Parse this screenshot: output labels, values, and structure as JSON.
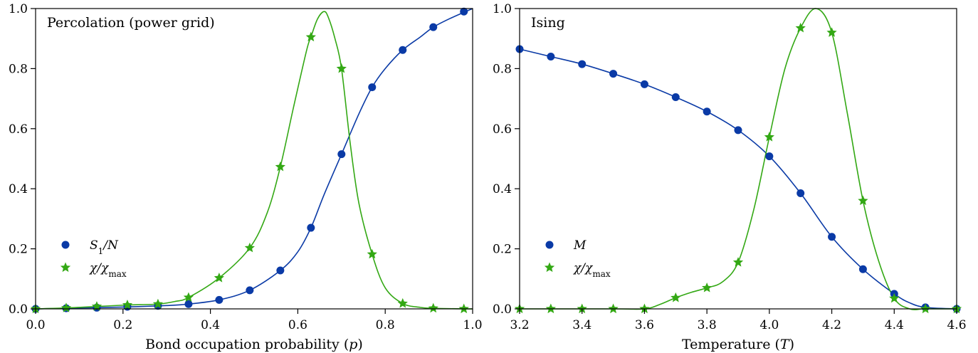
{
  "colors": {
    "blue": "#0a3aa6",
    "green": "#33a814"
  },
  "chart_data": [
    {
      "type": "line",
      "title": "Percolation (power grid)",
      "xlabel": "Bond occupation probability (p)",
      "ylabel": "",
      "xlim": [
        0.0,
        1.0
      ],
      "ylim": [
        0.0,
        1.0
      ],
      "xticks": [
        0.0,
        0.2,
        0.4,
        0.6,
        0.8,
        1.0
      ],
      "xtick_labels": [
        "0.0",
        "0.2",
        "0.4",
        "0.6",
        "0.8",
        "1.0"
      ],
      "yticks": [
        0.0,
        0.2,
        0.4,
        0.6,
        0.8,
        1.0
      ],
      "ytick_labels": [
        "0.0",
        "0.2",
        "0.4",
        "0.6",
        "0.8",
        "1.0"
      ],
      "legend_position": "lower-left",
      "series": [
        {
          "name": "S1/N",
          "marker": "circle",
          "color": "blue",
          "x": [
            0.0,
            0.07,
            0.14,
            0.21,
            0.28,
            0.35,
            0.42,
            0.49,
            0.56,
            0.63,
            0.7,
            0.77,
            0.84,
            0.91,
            0.98
          ],
          "y": [
            0.0,
            0.002,
            0.004,
            0.007,
            0.01,
            0.016,
            0.03,
            0.062,
            0.128,
            0.27,
            0.515,
            0.738,
            0.862,
            0.938,
            0.99
          ],
          "curve_x": [
            0.0,
            0.1,
            0.2,
            0.3,
            0.35,
            0.42,
            0.49,
            0.56,
            0.6,
            0.63,
            0.66,
            0.7,
            0.74,
            0.77,
            0.8,
            0.84,
            0.88,
            0.91,
            0.95,
            1.0
          ],
          "curve_y": [
            0.0,
            0.003,
            0.006,
            0.011,
            0.016,
            0.03,
            0.062,
            0.128,
            0.19,
            0.27,
            0.38,
            0.515,
            0.65,
            0.738,
            0.8,
            0.862,
            0.905,
            0.938,
            0.968,
            1.0
          ]
        },
        {
          "name": "χ/χmax",
          "marker": "star",
          "color": "green",
          "x": [
            0.0,
            0.07,
            0.14,
            0.21,
            0.28,
            0.35,
            0.42,
            0.49,
            0.56,
            0.63,
            0.7,
            0.77,
            0.84,
            0.91,
            0.98
          ],
          "y": [
            0.0,
            0.003,
            0.008,
            0.013,
            0.016,
            0.038,
            0.103,
            0.203,
            0.473,
            0.905,
            0.8,
            0.182,
            0.018,
            0.002,
            0.0
          ],
          "curve_x": [
            0.0,
            0.07,
            0.14,
            0.21,
            0.28,
            0.32,
            0.35,
            0.42,
            0.49,
            0.53,
            0.56,
            0.59,
            0.62,
            0.63,
            0.645,
            0.66,
            0.67,
            0.685,
            0.7,
            0.72,
            0.74,
            0.77,
            0.8,
            0.84,
            0.88,
            0.91,
            0.98,
            1.0
          ],
          "curve_y": [
            0.0,
            0.003,
            0.008,
            0.013,
            0.016,
            0.025,
            0.038,
            0.103,
            0.203,
            0.32,
            0.473,
            0.67,
            0.86,
            0.905,
            0.965,
            0.99,
            0.97,
            0.9,
            0.8,
            0.55,
            0.35,
            0.182,
            0.07,
            0.018,
            0.005,
            0.002,
            0.0,
            0.0
          ]
        }
      ]
    },
    {
      "type": "line",
      "title": "Ising",
      "xlabel": "Temperature (T)",
      "ylabel": "",
      "xlim": [
        3.2,
        4.6
      ],
      "ylim": [
        0.0,
        1.0
      ],
      "xticks": [
        3.2,
        3.4,
        3.6,
        3.8,
        4.0,
        4.2,
        4.4,
        4.6
      ],
      "xtick_labels": [
        "3.2",
        "3.4",
        "3.6",
        "3.8",
        "4.0",
        "4.2",
        "4.4",
        "4.6"
      ],
      "yticks": [
        0.0,
        0.2,
        0.4,
        0.6,
        0.8,
        1.0
      ],
      "ytick_labels": [
        "0.0",
        "0.2",
        "0.4",
        "0.6",
        "0.8",
        "1.0"
      ],
      "legend_position": "lower-left",
      "series": [
        {
          "name": "M",
          "marker": "circle",
          "color": "blue",
          "x": [
            3.2,
            3.3,
            3.4,
            3.5,
            3.6,
            3.7,
            3.8,
            3.9,
            4.0,
            4.1,
            4.2,
            4.3,
            4.4,
            4.5,
            4.6
          ],
          "y": [
            0.865,
            0.84,
            0.815,
            0.783,
            0.748,
            0.705,
            0.657,
            0.595,
            0.508,
            0.385,
            0.24,
            0.132,
            0.05,
            0.005,
            0.0
          ],
          "curve_x": [
            3.2,
            3.3,
            3.4,
            3.5,
            3.6,
            3.7,
            3.8,
            3.9,
            4.0,
            4.1,
            4.2,
            4.3,
            4.4,
            4.45,
            4.5,
            4.6
          ],
          "curve_y": [
            0.865,
            0.84,
            0.815,
            0.783,
            0.748,
            0.705,
            0.657,
            0.595,
            0.508,
            0.385,
            0.24,
            0.132,
            0.05,
            0.02,
            0.005,
            0.0
          ]
        },
        {
          "name": "χ/χmax",
          "marker": "star",
          "color": "green",
          "x": [
            3.2,
            3.3,
            3.4,
            3.5,
            3.6,
            3.7,
            3.8,
            3.9,
            4.0,
            4.1,
            4.2,
            4.3,
            4.4,
            4.5,
            4.6
          ],
          "y": [
            0.0,
            0.0,
            0.0,
            0.0,
            0.0,
            0.037,
            0.07,
            0.155,
            0.572,
            0.935,
            0.92,
            0.36,
            0.035,
            0.0,
            0.0
          ],
          "curve_x": [
            3.2,
            3.5,
            3.6,
            3.65,
            3.7,
            3.75,
            3.8,
            3.85,
            3.9,
            3.95,
            4.0,
            4.05,
            4.1,
            4.15,
            4.2,
            4.25,
            4.3,
            4.35,
            4.4,
            4.45,
            4.5,
            4.6
          ],
          "curve_y": [
            0.0,
            0.0,
            0.0,
            0.015,
            0.037,
            0.055,
            0.07,
            0.09,
            0.155,
            0.33,
            0.572,
            0.8,
            0.935,
            1.0,
            0.92,
            0.65,
            0.36,
            0.16,
            0.035,
            0.0,
            0.0,
            0.0
          ]
        }
      ]
    }
  ]
}
